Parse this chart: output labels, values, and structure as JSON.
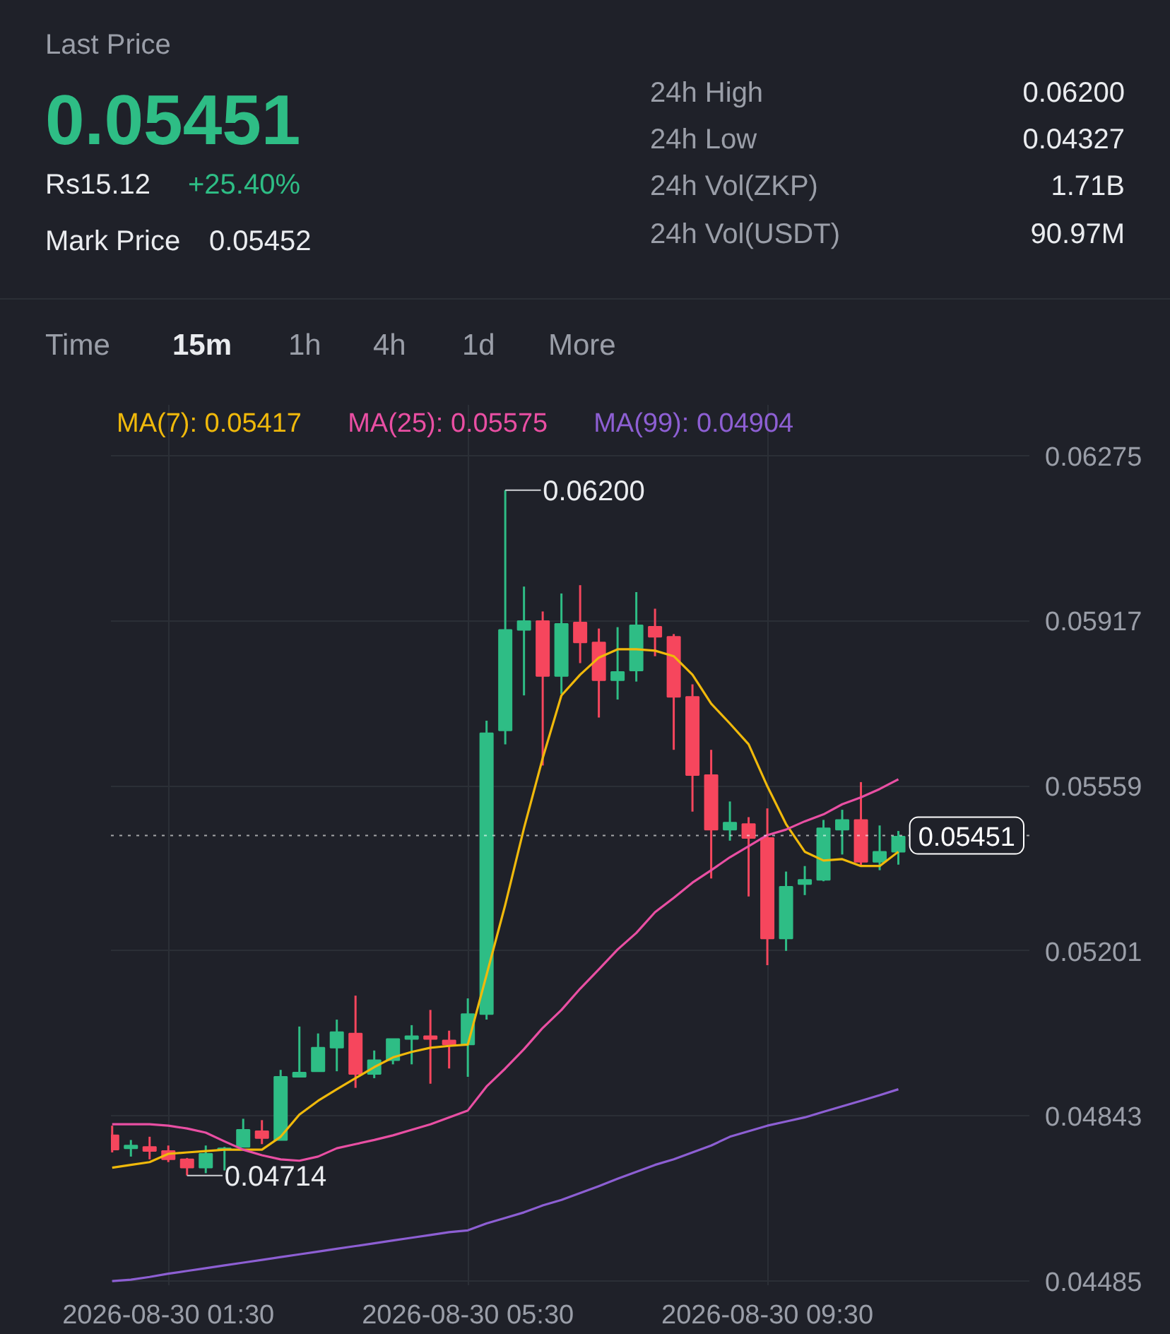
{
  "chart_data": {
    "type": "candlestick",
    "x": [
      "2026-08-30T00:45",
      "2026-08-30T01:00",
      "2026-08-30T01:15",
      "2026-08-30T01:30",
      "2026-08-30T01:45",
      "2026-08-30T02:00",
      "2026-08-30T02:15",
      "2026-08-30T02:30",
      "2026-08-30T02:45",
      "2026-08-30T03:00",
      "2026-08-30T03:15",
      "2026-08-30T03:30",
      "2026-08-30T03:45",
      "2026-08-30T04:00",
      "2026-08-30T04:15",
      "2026-08-30T04:30",
      "2026-08-30T04:45",
      "2026-08-30T05:00",
      "2026-08-30T05:15",
      "2026-08-30T05:30",
      "2026-08-30T05:45",
      "2026-08-30T06:00",
      "2026-08-30T06:15",
      "2026-08-30T06:30",
      "2026-08-30T06:45",
      "2026-08-30T07:00",
      "2026-08-30T07:15",
      "2026-08-30T07:30",
      "2026-08-30T07:45",
      "2026-08-30T08:00",
      "2026-08-30T08:15",
      "2026-08-30T08:30",
      "2026-08-30T08:45",
      "2026-08-30T09:00",
      "2026-08-30T09:15",
      "2026-08-30T09:30",
      "2026-08-30T09:45",
      "2026-08-30T10:00",
      "2026-08-30T10:15",
      "2026-08-30T10:30",
      "2026-08-30T10:45",
      "2026-08-30T11:00",
      "2026-08-30T11:15"
    ],
    "ohlc": [
      [
        0.04801,
        0.04822,
        0.04764,
        0.0477
      ],
      [
        0.04773,
        0.04791,
        0.04755,
        0.04779
      ],
      [
        0.04776,
        0.04798,
        0.04749,
        0.04767
      ],
      [
        0.04767,
        0.04779,
        0.04743,
        0.04749
      ],
      [
        0.04749,
        0.04752,
        0.04714,
        0.04731
      ],
      [
        0.04731,
        0.04779,
        0.04719,
        0.04761
      ],
      [
        0.0477,
        0.04776,
        0.04725,
        0.04773
      ],
      [
        0.04776,
        0.04837,
        0.04776,
        0.04813
      ],
      [
        0.0481,
        0.04834,
        0.04782,
        0.04795
      ],
      [
        0.04791,
        0.04943,
        0.04791,
        0.04928
      ],
      [
        0.04928,
        0.05037,
        0.04928,
        0.04937
      ],
      [
        0.0494,
        0.05022,
        0.0494,
        0.04991
      ],
      [
        0.04991,
        0.05052,
        0.0494,
        0.05025
      ],
      [
        0.05022,
        0.05104,
        0.04904,
        0.04934
      ],
      [
        0.04934,
        0.04985,
        0.04925,
        0.04964
      ],
      [
        0.04964,
        0.0501,
        0.04955,
        0.0501
      ],
      [
        0.0501,
        0.0504,
        0.04955,
        0.05016
      ],
      [
        0.05016,
        0.05073,
        0.04913,
        0.0501
      ],
      [
        0.05007,
        0.05028,
        0.04946,
        0.04998
      ],
      [
        0.04998,
        0.05098,
        0.04928,
        0.05064
      ],
      [
        0.05064,
        0.057,
        0.05052,
        0.05673
      ],
      [
        0.05679,
        0.062,
        0.05649,
        0.05897
      ],
      [
        0.05897,
        0.05991,
        0.05755,
        0.05916
      ],
      [
        0.05916,
        0.05937,
        0.05603,
        0.05797
      ],
      [
        0.05797,
        0.05976,
        0.05758,
        0.0591
      ],
      [
        0.05913,
        0.05994,
        0.05825,
        0.0587
      ],
      [
        0.0587,
        0.059,
        0.05707,
        0.05788
      ],
      [
        0.05788,
        0.05903,
        0.05746,
        0.05806
      ],
      [
        0.05809,
        0.05979,
        0.05785,
        0.05907
      ],
      [
        0.05904,
        0.05943,
        0.0584,
        0.05882
      ],
      [
        0.05882,
        0.05888,
        0.05637,
        0.05752
      ],
      [
        0.05752,
        0.05779,
        0.05503,
        0.05582
      ],
      [
        0.05582,
        0.05637,
        0.05358,
        0.05464
      ],
      [
        0.05464,
        0.05525,
        0.0544,
        0.05479
      ],
      [
        0.05476,
        0.05491,
        0.05319,
        0.05446
      ],
      [
        0.05446,
        0.0551,
        0.0517,
        0.05228
      ],
      [
        0.05228,
        0.05373,
        0.05201,
        0.0534
      ],
      [
        0.05346,
        0.05385,
        0.05322,
        0.05355
      ],
      [
        0.05355,
        0.05485,
        0.05352,
        0.05467
      ],
      [
        0.05464,
        0.05507,
        0.0541,
        0.05485
      ],
      [
        0.05485,
        0.05567,
        0.05385,
        0.05394
      ],
      [
        0.05394,
        0.05473,
        0.05376,
        0.05416
      ],
      [
        0.05416,
        0.05461,
        0.05388,
        0.05449
      ]
    ],
    "colors": [
      "#f6465d",
      "#2ebd85",
      "#f6465d",
      "#f6465d",
      "#f6465d",
      "#2ebd85",
      "#2ebd85",
      "#2ebd85",
      "#f6465d",
      "#2ebd85",
      "#2ebd85",
      "#2ebd85",
      "#2ebd85",
      "#f6465d",
      "#2ebd85",
      "#2ebd85",
      "#2ebd85",
      "#f6465d",
      "#f6465d",
      "#2ebd85",
      "#2ebd85",
      "#2ebd85",
      "#2ebd85",
      "#f6465d",
      "#2ebd85",
      "#f6465d",
      "#f6465d",
      "#2ebd85",
      "#2ebd85",
      "#f6465d",
      "#f6465d",
      "#f6465d",
      "#f6465d",
      "#2ebd85",
      "#f6465d",
      "#f6465d",
      "#2ebd85",
      "#2ebd85",
      "#2ebd85",
      "#2ebd85",
      "#f6465d",
      "#2ebd85",
      "#2ebd85"
    ],
    "series": [
      {
        "name": "MA(7): 0.05417",
        "type": "line",
        "color": "#f0b90b",
        "values": [
          0.04731,
          0.04737,
          0.04743,
          0.04761,
          0.04764,
          0.04767,
          0.0477,
          0.0477,
          0.0477,
          0.04798,
          0.04846,
          0.04876,
          0.04901,
          0.04925,
          0.04949,
          0.0497,
          0.04982,
          0.04991,
          0.04995,
          0.04998,
          0.05149,
          0.05301,
          0.05467,
          0.05619,
          0.05755,
          0.058,
          0.05837,
          0.05855,
          0.05855,
          0.05852,
          0.0584,
          0.058,
          0.05737,
          0.05694,
          0.05649,
          0.05558,
          0.05476,
          0.05416,
          0.05397,
          0.054,
          0.05385,
          0.05385,
          0.05416
        ]
      },
      {
        "name": "MA(25): 0.05575",
        "type": "line",
        "color": "#e94fa3",
        "values": [
          0.04825,
          0.04825,
          0.04825,
          0.04822,
          0.04816,
          0.04807,
          0.04788,
          0.0477,
          0.04758,
          0.04749,
          0.04746,
          0.04755,
          0.04773,
          0.04782,
          0.04791,
          0.04801,
          0.04813,
          0.04825,
          0.0484,
          0.04855,
          0.04907,
          0.04946,
          0.04988,
          0.05034,
          0.05073,
          0.05119,
          0.05161,
          0.05204,
          0.0524,
          0.05285,
          0.05316,
          0.05349,
          0.05376,
          0.05404,
          0.05428,
          0.05452,
          0.05464,
          0.05482,
          0.05497,
          0.05519,
          0.05534,
          0.05552,
          0.05573
        ]
      },
      {
        "name": "MA(99): 0.04904",
        "type": "line",
        "color": "#8d5fd3",
        "values": [
          0.04485,
          0.04488,
          0.04494,
          0.04501,
          0.04507,
          0.04513,
          0.04519,
          0.04525,
          0.04531,
          0.04537,
          0.04543,
          0.04549,
          0.04555,
          0.04561,
          0.04567,
          0.04573,
          0.04579,
          0.04585,
          0.04591,
          0.04595,
          0.0461,
          0.04622,
          0.04634,
          0.04649,
          0.04661,
          0.04676,
          0.04691,
          0.04707,
          0.04722,
          0.04737,
          0.04749,
          0.04764,
          0.04779,
          0.04798,
          0.0481,
          0.04822,
          0.04831,
          0.0484,
          0.04852,
          0.04864,
          0.04876,
          0.04888,
          0.04901
        ]
      }
    ],
    "xlim": [
      "2026-08-30T00:44",
      "2026-08-30T13:00"
    ],
    "xticks": [
      {
        "value": "2026-08-30T01:30",
        "label": "2026-08-30 01:30"
      },
      {
        "value": "2026-08-30T05:30",
        "label": "2026-08-30 05:30"
      },
      {
        "value": "2026-08-30T09:30",
        "label": "2026-08-30 09:30"
      }
    ],
    "ylim": [
      0.04476,
      0.06385
    ],
    "yticks": [
      0.04485,
      0.04843,
      0.05201,
      0.05559,
      0.05917,
      0.06275
    ],
    "grid": true,
    "legend": "top left",
    "ref_lines": [
      {
        "axis": "y",
        "value": 0.05451,
        "label": "0.05451",
        "color": "#ffffff",
        "line_style": "dotted"
      }
    ],
    "annotations": [
      "Last Price",
      "0.05451",
      "Rs15.12",
      "+25.40%",
      "Mark Price",
      "0.05452",
      "24h High",
      "0.06200",
      "24h Low",
      "0.04327",
      "24h Vol(ZKP)",
      "1.71B",
      "24h Vol(USDT)",
      "90.97M",
      "Time",
      "15m",
      "1h",
      "4h",
      "1d",
      "More",
      {
        "text": "0.06200",
        "x": "2026-08-30T06:00",
        "y": 0.062
      },
      {
        "text": "0.04714",
        "x": "2026-08-30T01:45",
        "y": 0.04714
      }
    ]
  }
}
